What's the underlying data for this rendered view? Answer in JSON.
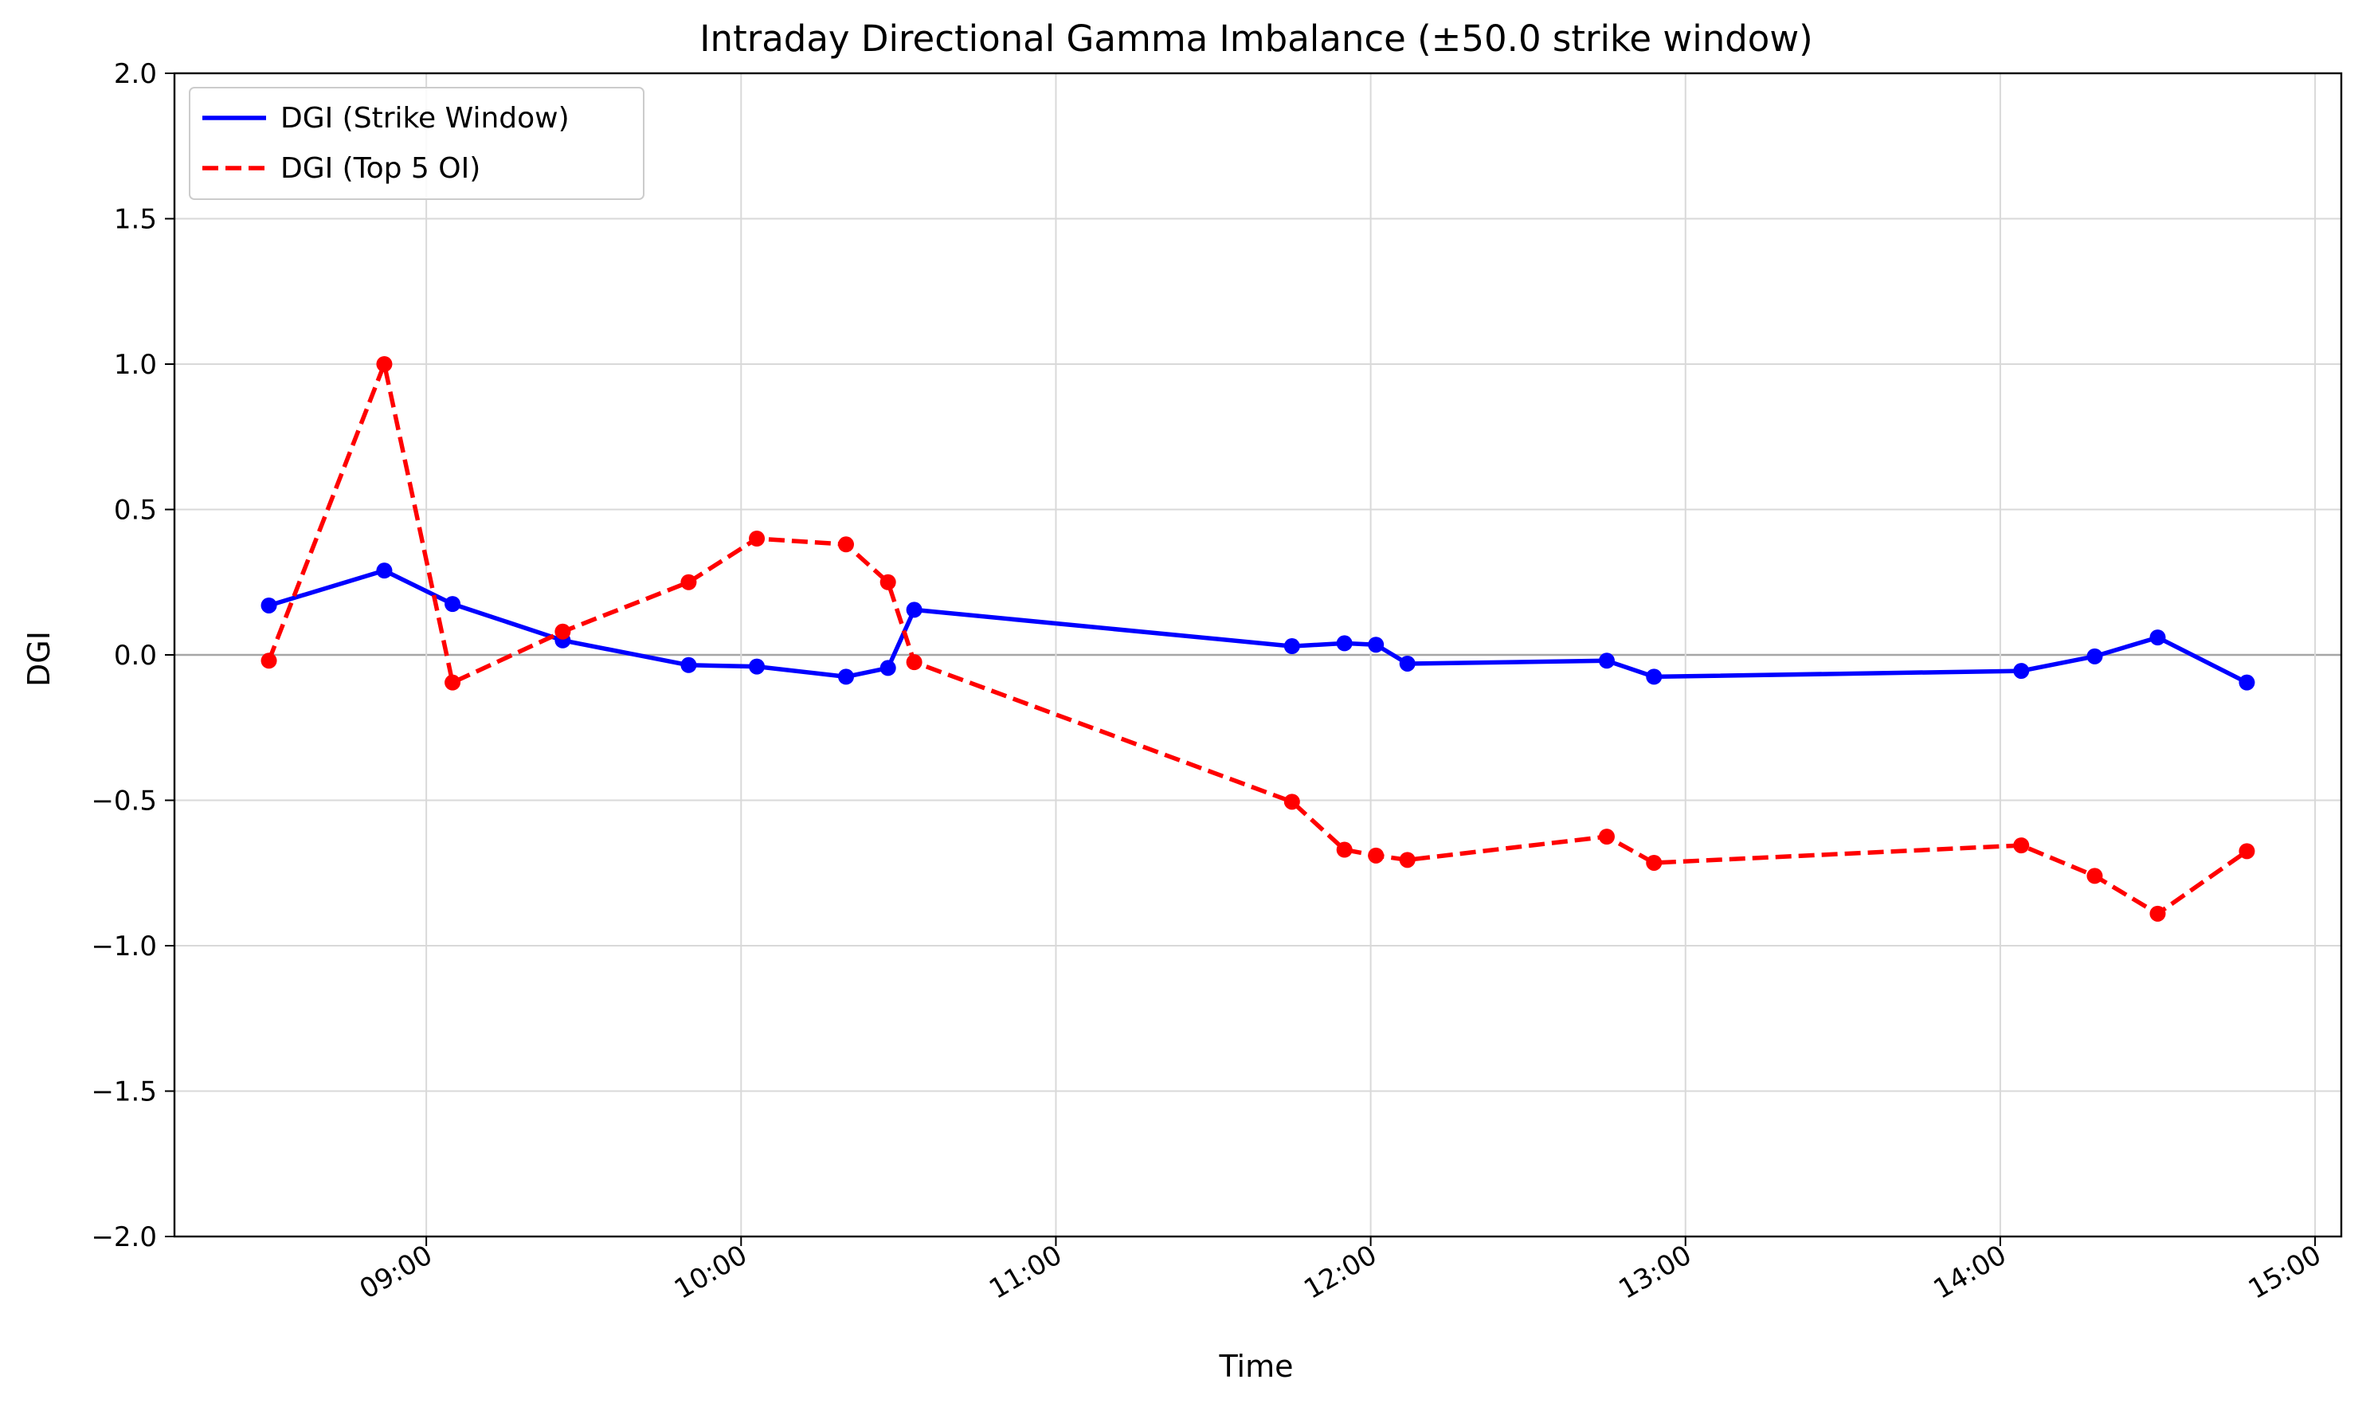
{
  "chart_data": {
    "type": "line",
    "title": "Intraday Directional Gamma Imbalance (±50.0 strike window)",
    "xlabel": "Time",
    "ylabel": "DGI",
    "ylim": [
      -2.0,
      2.0
    ],
    "xlim": [
      "08:12",
      "15:05"
    ],
    "y_ticks": [
      "2.0",
      "1.5",
      "1.0",
      "0.5",
      "0.0",
      "−0.5",
      "−1.0",
      "−1.5",
      "−2.0"
    ],
    "y_tick_values": [
      2.0,
      1.5,
      1.0,
      0.5,
      0.0,
      -0.5,
      -1.0,
      -1.5,
      -2.0
    ],
    "x_ticks": [
      "09:00",
      "10:00",
      "11:00",
      "12:00",
      "13:00",
      "14:00",
      "15:00"
    ],
    "grid": true,
    "zero_line": true,
    "legend_position": "top-left",
    "series": [
      {
        "name": "DGI (Strike Window)",
        "color": "#0000ff",
        "style": "solid",
        "marker": "circle",
        "points": [
          {
            "x": "08:30",
            "y": 0.17
          },
          {
            "x": "08:52",
            "y": 0.29
          },
          {
            "x": "09:05",
            "y": 0.175
          },
          {
            "x": "09:26",
            "y": 0.05
          },
          {
            "x": "09:50",
            "y": -0.035
          },
          {
            "x": "10:03",
            "y": -0.04
          },
          {
            "x": "10:20",
            "y": -0.075
          },
          {
            "x": "10:28",
            "y": -0.045
          },
          {
            "x": "10:33",
            "y": 0.155
          },
          {
            "x": "11:45",
            "y": 0.03
          },
          {
            "x": "11:55",
            "y": 0.04
          },
          {
            "x": "12:01",
            "y": 0.035
          },
          {
            "x": "12:07",
            "y": -0.03
          },
          {
            "x": "12:45",
            "y": -0.02
          },
          {
            "x": "12:54",
            "y": -0.075
          },
          {
            "x": "14:04",
            "y": -0.055
          },
          {
            "x": "14:18",
            "y": -0.005
          },
          {
            "x": "14:30",
            "y": 0.06
          },
          {
            "x": "14:47",
            "y": -0.095
          }
        ]
      },
      {
        "name": "DGI (Top 5 OI)",
        "color": "#ff0000",
        "style": "dashed",
        "marker": "circle",
        "points": [
          {
            "x": "08:30",
            "y": -0.02
          },
          {
            "x": "08:52",
            "y": 1.0
          },
          {
            "x": "09:05",
            "y": -0.095
          },
          {
            "x": "09:26",
            "y": 0.08
          },
          {
            "x": "09:50",
            "y": 0.25
          },
          {
            "x": "10:03",
            "y": 0.4
          },
          {
            "x": "10:20",
            "y": 0.38
          },
          {
            "x": "10:28",
            "y": 0.25
          },
          {
            "x": "10:33",
            "y": -0.025
          },
          {
            "x": "11:45",
            "y": -0.505
          },
          {
            "x": "11:55",
            "y": -0.67
          },
          {
            "x": "12:01",
            "y": -0.69
          },
          {
            "x": "12:07",
            "y": -0.705
          },
          {
            "x": "12:45",
            "y": -0.625
          },
          {
            "x": "12:54",
            "y": -0.715
          },
          {
            "x": "14:04",
            "y": -0.655
          },
          {
            "x": "14:18",
            "y": -0.76
          },
          {
            "x": "14:30",
            "y": -0.89
          },
          {
            "x": "14:47",
            "y": -0.675
          }
        ]
      }
    ]
  }
}
